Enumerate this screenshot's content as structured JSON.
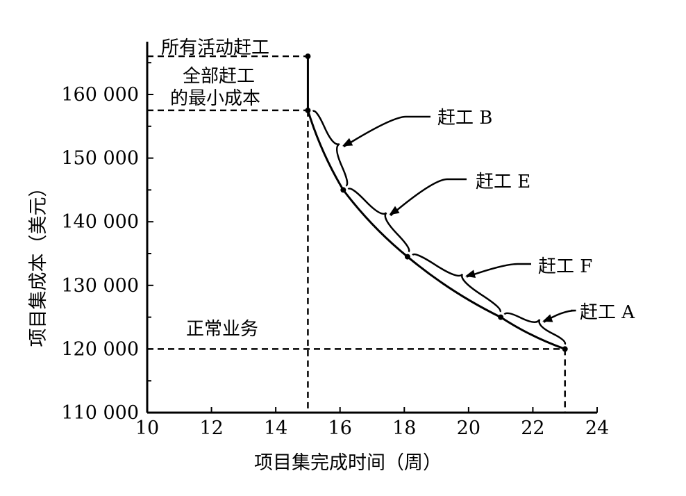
{
  "chart_data": {
    "type": "line",
    "title": "",
    "xlabel": "项目集完成时间（周）",
    "ylabel": "项目集成本（美元）",
    "xlim": [
      10,
      24
    ],
    "ylim": [
      110000,
      164000
    ],
    "xticks": [
      10,
      12,
      14,
      16,
      18,
      20,
      22,
      24
    ],
    "xtick_labels": [
      "10",
      "12",
      "14",
      "16",
      "18",
      "20",
      "22",
      "24"
    ],
    "yticks": [
      110000,
      120000,
      130000,
      140000,
      150000,
      160000
    ],
    "ytick_labels": [
      "110 000",
      "120 000",
      "130 000",
      "140 000",
      "150 000",
      "160 000"
    ],
    "series": [
      {
        "points": [
          {
            "x": 23,
            "y": 120000
          },
          {
            "x": 21,
            "y": 125000
          },
          {
            "x": 18.1,
            "y": 134500
          },
          {
            "x": 16.1,
            "y": 145000
          },
          {
            "x": 15,
            "y": 157500
          },
          {
            "x": 15,
            "y": 166000
          }
        ]
      }
    ],
    "reference_lines": {
      "all_crash_cost": 166000,
      "min_full_crash_cost": 157500,
      "normal_cost": 120000,
      "min_full_crash_time": 15,
      "normal_time": 23
    },
    "annotations": {
      "all_activities_crashed": "所有活动赶工",
      "full_crash_min_cost_line1": "全部赶工",
      "full_crash_min_cost_line2": "的最小成本",
      "normal_operation": "正常业务",
      "crash_b": "赶工 B",
      "crash_e": "赶工 E",
      "crash_f": "赶工 F",
      "crash_a": "赶工 A"
    }
  }
}
